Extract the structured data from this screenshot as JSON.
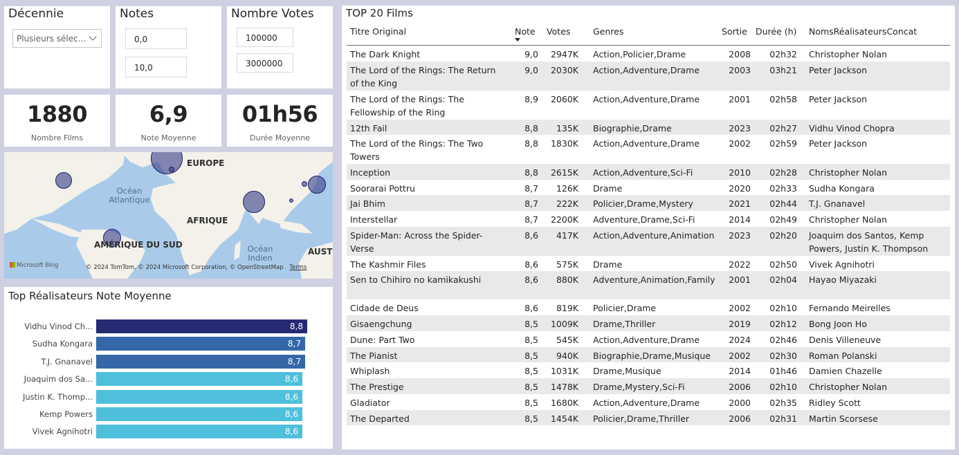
{
  "filters": {
    "decennie": {
      "title": "Décennie",
      "value": "Plusieurs sélec..."
    },
    "notes": {
      "title": "Notes",
      "min": "0,0",
      "max": "10,0"
    },
    "votes": {
      "title": "Nombre Votes",
      "min": "100000",
      "max": "3000000"
    }
  },
  "kpis": [
    {
      "value": "1880",
      "label": "Nombre Films"
    },
    {
      "value": "6,9",
      "label": "Note Moyenne"
    },
    {
      "value": "01h56",
      "label": "Durée Moyenne"
    }
  ],
  "map": {
    "labels": {
      "europe": "EUROPE",
      "afrique": "AFRIQUE",
      "amerique_sud": "AMÉRIQUE DU SUD",
      "aust": "AUST",
      "ocean_atlantique": "Océan\nAtlantique",
      "ocean_indien": "Océan\nIndien"
    },
    "credit": "© 2024 TomTom, © 2024 Microsoft Corporation, © OpenStreetMap",
    "terms": "Terms",
    "bing": "Microsoft Bing",
    "colors": {
      "sea": "#a9cbe9",
      "land": "#f3f1ea"
    }
  },
  "bar_chart": {
    "title": "Top Réalisateurs Note Moyenne",
    "max": 9.0,
    "items": [
      {
        "name": "Vidhu Vinod Ch...",
        "value": 8.8,
        "label": "8,8",
        "color": "#262a73"
      },
      {
        "name": "Sudha Kongara",
        "value": 8.7,
        "label": "8,7",
        "color": "#3567a8"
      },
      {
        "name": "T.J. Gnanavel",
        "value": 8.7,
        "label": "8,7",
        "color": "#3567a8"
      },
      {
        "name": "Joaquim dos Sa...",
        "value": 8.6,
        "label": "8,6",
        "color": "#4ec0dc"
      },
      {
        "name": "Justin K. Thomp...",
        "value": 8.6,
        "label": "8,6",
        "color": "#4ec0dc"
      },
      {
        "name": "Kemp Powers",
        "value": 8.6,
        "label": "8,6",
        "color": "#4ec0dc"
      },
      {
        "name": "Vivek Agnihotri",
        "value": 8.6,
        "label": "8,6",
        "color": "#4ec0dc"
      }
    ]
  },
  "table": {
    "title": "TOP 20 Films",
    "headers": [
      "Titre Original",
      "Note",
      "Votes",
      "Genres",
      "Sortie",
      "Durée (h)",
      "NomsRéalisateursConcat"
    ],
    "rows": [
      [
        "The Dark Knight",
        "9,0",
        "2947K",
        "Action,Policier,Drame",
        "2008",
        "02h32",
        "Christopher Nolan"
      ],
      [
        "The Lord of the Rings: The Return of the King",
        "9,0",
        "2030K",
        "Action,Adventure,Drame",
        "2003",
        "03h21",
        "Peter Jackson"
      ],
      [
        "The Lord of the Rings: The Fellowship of the Ring",
        "8,9",
        "2060K",
        "Action,Adventure,Drame",
        "2001",
        "02h58",
        "Peter Jackson"
      ],
      [
        "12th Fail",
        "8,8",
        "135K",
        "Biographie,Drame",
        "2023",
        "02h27",
        "Vidhu Vinod Chopra"
      ],
      [
        "The Lord of the Rings: The Two Towers",
        "8,8",
        "1830K",
        "Action,Adventure,Drame",
        "2002",
        "02h59",
        "Peter Jackson"
      ],
      [
        "Inception",
        "8,8",
        "2615K",
        "Action,Adventure,Sci-Fi",
        "2010",
        "02h28",
        "Christopher Nolan"
      ],
      [
        "Soorarai Pottru",
        "8,7",
        "126K",
        "Drame",
        "2020",
        "02h33",
        "Sudha Kongara"
      ],
      [
        "Jai Bhim",
        "8,7",
        "222K",
        "Policier,Drame,Mystery",
        "2021",
        "02h44",
        "T.J. Gnanavel"
      ],
      [
        "Interstellar",
        "8,7",
        "2200K",
        "Adventure,Drame,Sci-Fi",
        "2014",
        "02h49",
        "Christopher Nolan"
      ],
      [
        "Spider-Man: Across the Spider-Verse",
        "8,6",
        "417K",
        "Action,Adventure,Animation",
        "2023",
        "02h20",
        "Joaquim dos Santos, Kemp Powers, Justin K. Thompson"
      ],
      [
        "The Kashmir Files",
        "8,6",
        "575K",
        "Drame",
        "2022",
        "02h50",
        "Vivek Agnihotri"
      ],
      [
        "Sen to Chihiro no kamikakushi",
        "8,6",
        "880K",
        "Adventure,Animation,Family",
        "2001",
        "02h04",
        "Hayao Miyazaki"
      ],
      [
        "Cidade de Deus",
        "8,6",
        "819K",
        "Policier,Drame",
        "2002",
        "02h10",
        "Fernando Meirelles"
      ],
      [
        "Gisaengchung",
        "8,5",
        "1009K",
        "Drame,Thriller",
        "2019",
        "02h12",
        "Bong Joon Ho"
      ],
      [
        "Dune: Part Two",
        "8,5",
        "545K",
        "Action,Adventure,Drame",
        "2024",
        "02h46",
        "Denis Villeneuve"
      ],
      [
        "The Pianist",
        "8,5",
        "940K",
        "Biographie,Drame,Musique",
        "2002",
        "02h30",
        "Roman Polanski"
      ],
      [
        "Whiplash",
        "8,5",
        "1031K",
        "Drame,Musique",
        "2014",
        "01h46",
        "Damien Chazelle"
      ],
      [
        "The Prestige",
        "8,5",
        "1478K",
        "Drame,Mystery,Sci-Fi",
        "2006",
        "02h10",
        "Christopher Nolan"
      ],
      [
        "Gladiator",
        "8,5",
        "1680K",
        "Action,Adventure,Drame",
        "2000",
        "02h35",
        "Ridley Scott"
      ],
      [
        "The Departed",
        "8,5",
        "1454K",
        "Policier,Drame,Thriller",
        "2006",
        "02h31",
        "Martin Scorsese"
      ]
    ]
  }
}
